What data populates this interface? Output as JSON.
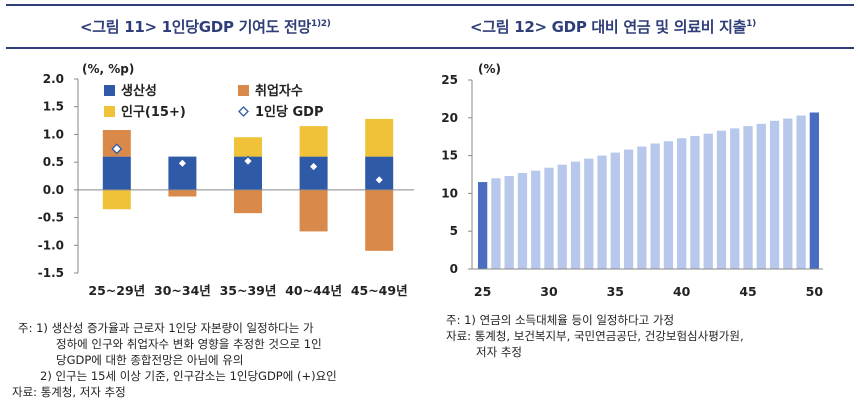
{
  "left_title": "<그림 11> 1인당GDP 기여도 전망",
  "left_title_sup": "1)2)",
  "right_title": "<그림 12> GDP 대비 연금 및 의료비 지출",
  "right_title_sup": "1)",
  "colors": {
    "heading": "#2f3e78",
    "productivity": "#2e5aa8",
    "employed": "#d98a4a",
    "population": "#f0c23a",
    "gdp_marker": "#2e5aa8",
    "bar_light": "#b7c8ec",
    "bar_dark": "#4a6cc1"
  },
  "left_notes": [
    "주: 1) 생산성 증가율과 근로자 1인당 자본량이 일정하다는 가",
    "정하에 인구와 취업자수 변화 영향을 추정한 것으로 1인",
    "당GDP에 대한 종합전망은 아님에 유의",
    "2) 인구는 15세 이상 기준, 인구감소는 1인당GDP에 (+)요인",
    "자료: 통계청, 저자 추정"
  ],
  "right_notes": [
    "주: 1) 연금의 소득대체율 등이 일정하다고 가정",
    "자료: 통계청, 보건복지부, 국민연금공단, 건강보험심사평가원,",
    "저자 추정"
  ],
  "chart_data": [
    {
      "type": "bar",
      "stacked": true,
      "unit_label": "(%, %p)",
      "ylim": [
        -1.5,
        2.0
      ],
      "yticks": [
        "2.0",
        "1.5",
        "1.0",
        "0.5",
        "0.0",
        "-0.5",
        "-1.0",
        "-1.5"
      ],
      "categories": [
        "25~29년",
        "30~34년",
        "35~39년",
        "40~44년",
        "45~49년"
      ],
      "series": [
        {
          "name": "생산성",
          "values": [
            0.6,
            0.6,
            0.6,
            0.6,
            0.6
          ]
        },
        {
          "name": "취업자수",
          "values": [
            0.48,
            -0.12,
            -0.42,
            -0.75,
            -1.1
          ]
        },
        {
          "name": "인구(15+)",
          "values": [
            -0.35,
            0.0,
            0.35,
            0.55,
            0.68
          ]
        }
      ],
      "marker_series": {
        "name": "1인당 GDP",
        "values": [
          0.74,
          0.48,
          0.52,
          0.42,
          0.18
        ]
      },
      "legend": "top-left",
      "grid": false
    },
    {
      "type": "bar",
      "unit_label": "(%)",
      "ylim": [
        0,
        25
      ],
      "yticks": [
        "25",
        "20",
        "15",
        "10",
        "5",
        "0"
      ],
      "x_ticks": [
        "25",
        "30",
        "35",
        "40",
        "45",
        "50"
      ],
      "x": [
        25,
        26,
        27,
        28,
        29,
        30,
        31,
        32,
        33,
        34,
        35,
        36,
        37,
        38,
        39,
        40,
        41,
        42,
        43,
        44,
        45,
        46,
        47,
        48,
        49,
        50
      ],
      "values": [
        11.5,
        12.0,
        12.3,
        12.7,
        13.0,
        13.4,
        13.8,
        14.2,
        14.6,
        15.0,
        15.4,
        15.8,
        16.2,
        16.6,
        16.9,
        17.3,
        17.6,
        17.9,
        18.3,
        18.6,
        18.9,
        19.2,
        19.6,
        19.9,
        20.3,
        20.7
      ],
      "highlighted": [
        25,
        50
      ],
      "grid": false
    }
  ]
}
